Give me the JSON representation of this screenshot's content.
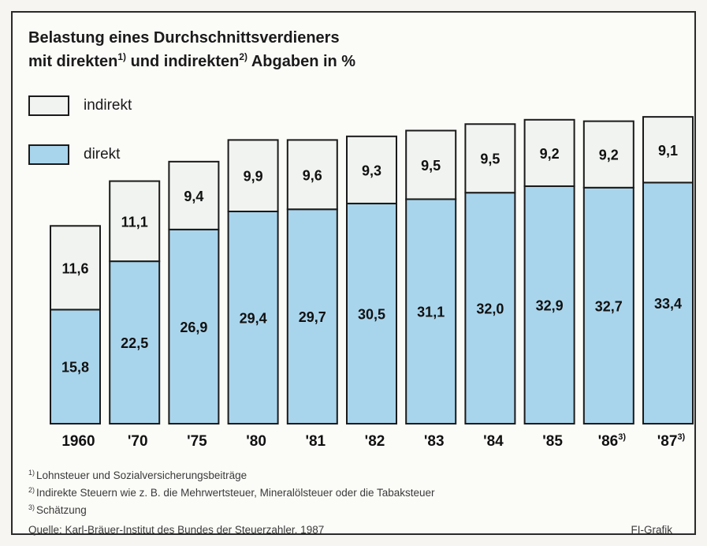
{
  "title_part1": "Belastung eines Durchschnittsverdieners",
  "title_part2": "mit direkten",
  "title_fn1": "1)",
  "title_part3": " und indirekten",
  "title_fn2": "2)",
  "title_part4": " Abgaben in %",
  "legend": [
    {
      "label": "indirekt",
      "color": "#f0f3ef"
    },
    {
      "label": "direkt",
      "color": "#a9d5ec"
    }
  ],
  "chart_data": {
    "type": "bar",
    "stacked": true,
    "categories": [
      "1960",
      "'70",
      "'75",
      "'80",
      "'81",
      "'82",
      "'83",
      "'84",
      "'85",
      "'86",
      "'87"
    ],
    "category_footnotes": [
      "",
      "",
      "",
      "",
      "",
      "",
      "",
      "",
      "",
      "3)",
      "3)"
    ],
    "series": [
      {
        "name": "direkt",
        "color": "#a9d5ec",
        "values": [
          15.8,
          22.5,
          26.9,
          29.4,
          29.7,
          30.5,
          31.1,
          32.0,
          32.9,
          32.7,
          33.4
        ],
        "labels": [
          "15,8",
          "22,5",
          "26,9",
          "29,4",
          "29,7",
          "30,5",
          "31,1",
          "32,0",
          "32,9",
          "32,7",
          "33,4"
        ]
      },
      {
        "name": "indirekt",
        "color": "#f0f3ef",
        "values": [
          11.6,
          11.1,
          9.4,
          9.9,
          9.6,
          9.3,
          9.5,
          9.5,
          9.2,
          9.2,
          9.1
        ],
        "labels": [
          "11,6",
          "11,1",
          "9,4",
          "9,9",
          "9,6",
          "9,3",
          "9,5",
          "9,5",
          "9,2",
          "9,2",
          "9,1"
        ]
      }
    ],
    "legend_position": "top-left",
    "grid": false
  },
  "footnotes": [
    {
      "mark": "1)",
      "text": "Lohnsteuer und Sozialversicherungsbeiträge"
    },
    {
      "mark": "2)",
      "text": "Indirekte Steuern wie z. B. die Mehrwertsteuer, Mineralölsteuer oder die Tabaksteuer"
    },
    {
      "mark": "3)",
      "text": "Schätzung"
    }
  ],
  "source": "Quelle: Karl-Bräuer-Institut des Bundes der Steuerzahler, 1987",
  "credit": "FI-Grafik"
}
